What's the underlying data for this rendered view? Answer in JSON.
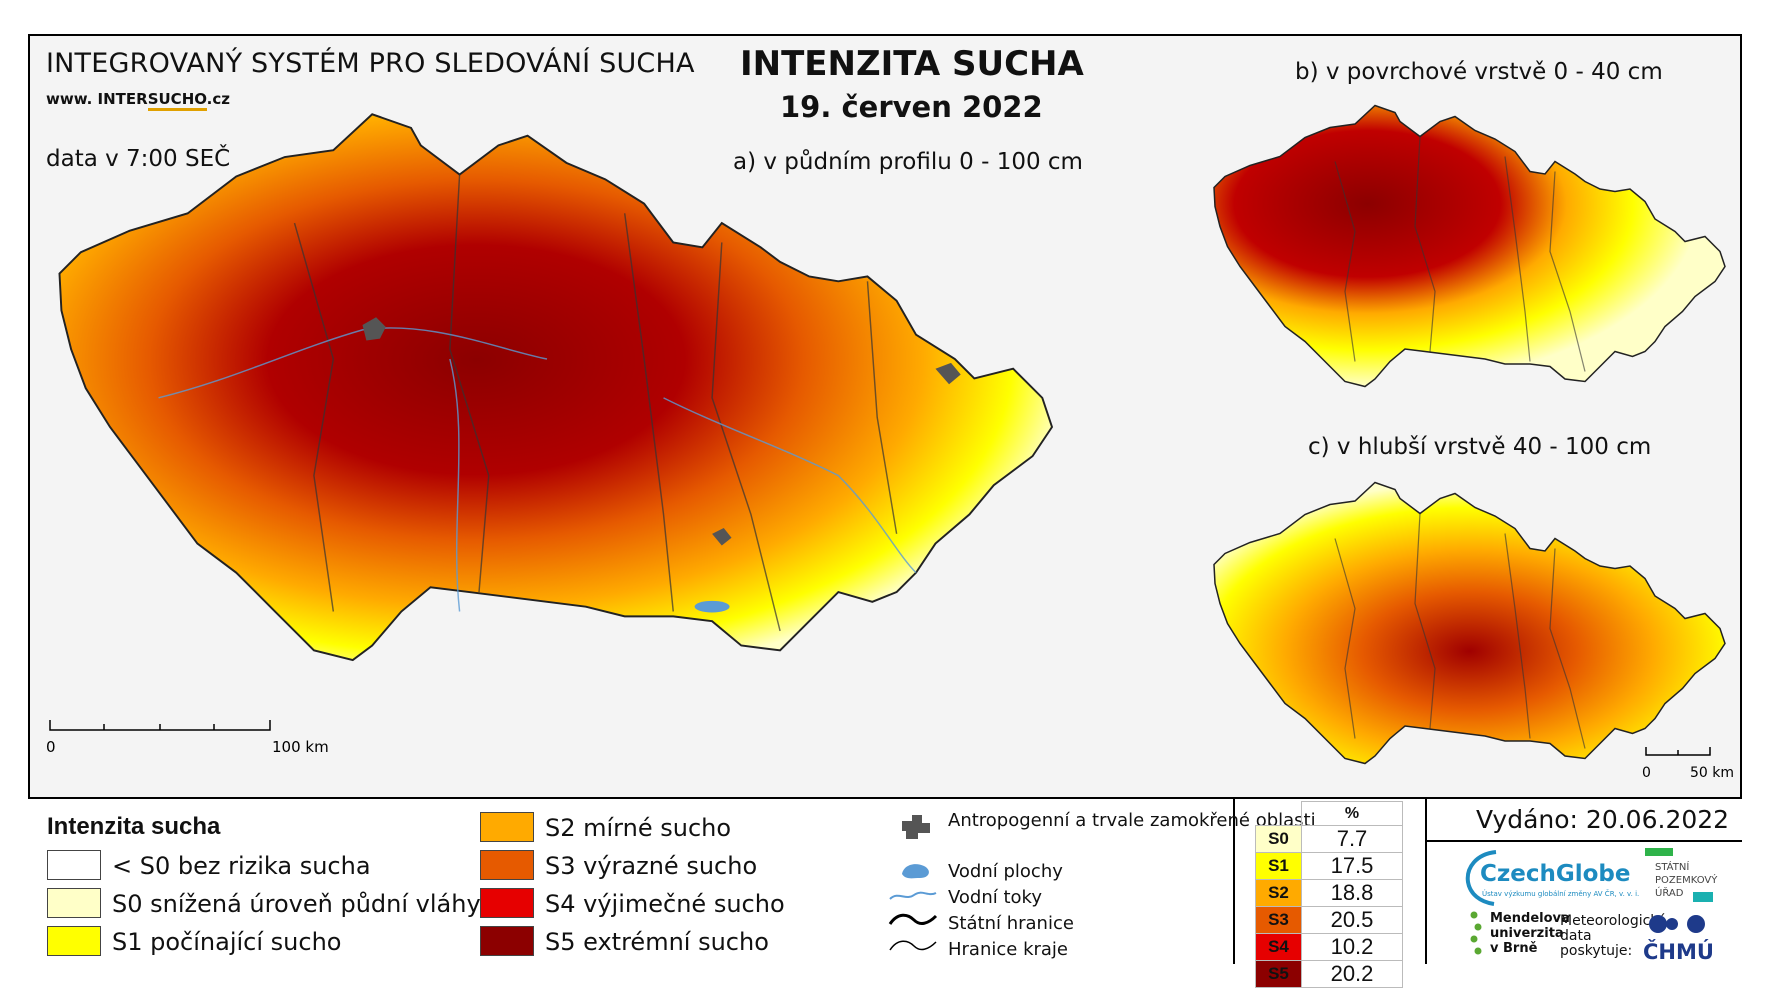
{
  "header": {
    "system_name": "INTEGROVANÝ SYSTÉM PRO SLEDOVÁNÍ SUCHA",
    "url_prefix": "www. INTER",
    "url_highlight": "SUCHO",
    "url_suffix": ".cz",
    "data_time": "data v 7:00 SEČ",
    "title": "INTENZITA SUCHA",
    "date": "19. červen 2022"
  },
  "maps": {
    "a_label": "a) v půdním profilu 0 - 100 cm",
    "b_label": "b) v povrchové vrstvě 0 - 40 cm",
    "c_label": "c) v hlubší vrstvě 40 - 100 cm",
    "scale_main": {
      "zero": "0",
      "end": "100 km"
    },
    "scale_small": {
      "zero": "0",
      "end": "50 km"
    }
  },
  "legend": {
    "title": "Intenzita sucha",
    "classes": [
      {
        "label": "< S0 bez rizika sucha",
        "color": "#ffffff"
      },
      {
        "label": "S0 snížená úroveň půdní vláhy",
        "color": "#ffffc8"
      },
      {
        "label": "S1 počínající sucho",
        "color": "#ffff00"
      },
      {
        "label": "S2 mírné sucho",
        "color": "#ffaa00"
      },
      {
        "label": "S3 výrazné sucho",
        "color": "#e65a00"
      },
      {
        "label": "S4 výjimečné sucho",
        "color": "#e60000"
      },
      {
        "label": "S5 extrémní sucho",
        "color": "#8c0000"
      }
    ],
    "symbols": [
      {
        "label": "Antropogenní a trvale zamokřené oblasti",
        "icon": "urban-area-icon"
      },
      {
        "label": "Vodní plochy",
        "icon": "water-body-icon"
      },
      {
        "label": "Vodní toky",
        "icon": "river-icon"
      },
      {
        "label": "Státní hranice",
        "icon": "state-border-icon"
      },
      {
        "label": "Hranice kraje",
        "icon": "region-border-icon"
      }
    ]
  },
  "stats": {
    "header": "%",
    "rows": [
      {
        "code": "S0",
        "value": "7.7",
        "color": "#ffffc8"
      },
      {
        "code": "S1",
        "value": "17.5",
        "color": "#ffff00"
      },
      {
        "code": "S2",
        "value": "18.8",
        "color": "#ffaa00"
      },
      {
        "code": "S3",
        "value": "20.5",
        "color": "#e65a00"
      },
      {
        "code": "S4",
        "value": "10.2",
        "color": "#e60000"
      },
      {
        "code": "S5",
        "value": "20.2",
        "color": "#8c0000"
      }
    ]
  },
  "footer": {
    "issued": "Vydáno: 20.06.2022",
    "czechglobe": "CzechGlobe",
    "czechglobe_sub": "Ústav výzkumu globální změny AV ČR, v. v. i.",
    "spu": "STÁTNÍ POZEMKOVÝ ÚŘAD",
    "mendel": "Mendelova univerzita v Brně",
    "met_text": "Meteorologická data poskytuje:",
    "chmu": "ČHMÚ"
  }
}
